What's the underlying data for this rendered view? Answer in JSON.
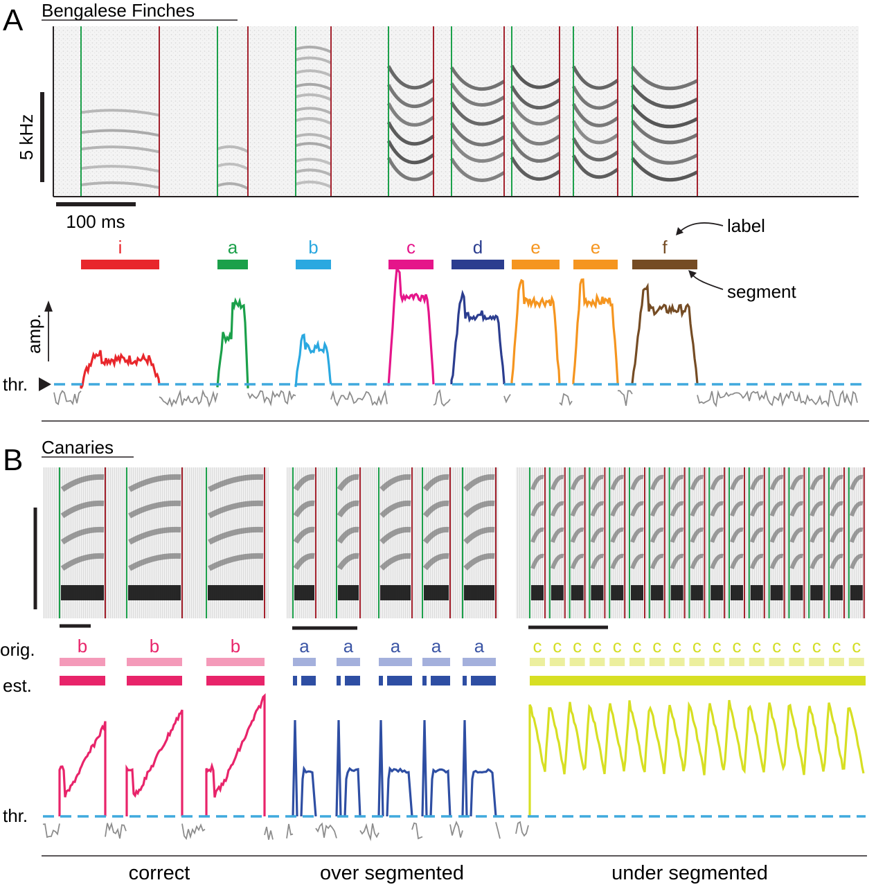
{
  "panel_a": {
    "letter": "A",
    "title": "Bengalese Finches",
    "freq_scale_label": "5 kHz",
    "time_scale_label": "100 ms",
    "amp_label": "amp.",
    "thr_label": "thr.",
    "annotation_label": "label",
    "annotation_segment": "segment",
    "syllables": [
      {
        "label": "i",
        "color": "#e8262b"
      },
      {
        "label": "a",
        "color": "#1ba04a"
      },
      {
        "label": "b",
        "color": "#2aa8e0"
      },
      {
        "label": "c",
        "color": "#e5158a"
      },
      {
        "label": "d",
        "color": "#2b3d8f"
      },
      {
        "label": "e",
        "color": "#f5951f"
      },
      {
        "label": "e",
        "color": "#f5951f"
      },
      {
        "label": "f",
        "color": "#754c24"
      }
    ],
    "threshold_color": "#3fa9dd",
    "onset_color": "#1ba04a",
    "offset_color": "#a3202c"
  },
  "panel_b": {
    "letter": "B",
    "title": "Canaries",
    "orig_label": "orig.",
    "est_label": "est.",
    "thr_label": "thr.",
    "groups": [
      {
        "caption": "correct",
        "labels": [
          "b",
          "b",
          "b"
        ],
        "label_color": "#e8246a",
        "orig_color": "#f49ab9",
        "est_color": "#e8246a"
      },
      {
        "caption": "over segmented",
        "labels": [
          "a",
          "a",
          "a",
          "a",
          "a"
        ],
        "label_color": "#3b55a5",
        "orig_color": "#a4b0dc",
        "est_color": "#2e4ea3"
      },
      {
        "caption": "under segmented",
        "labels": [
          "c",
          "c",
          "c",
          "c",
          "c",
          "c",
          "c",
          "c",
          "c",
          "c",
          "c",
          "c",
          "c",
          "c",
          "c",
          "c",
          "c"
        ],
        "label_color": "#d4de26",
        "orig_color": "#ecef9e",
        "est_color": "#d7df23"
      }
    ]
  }
}
